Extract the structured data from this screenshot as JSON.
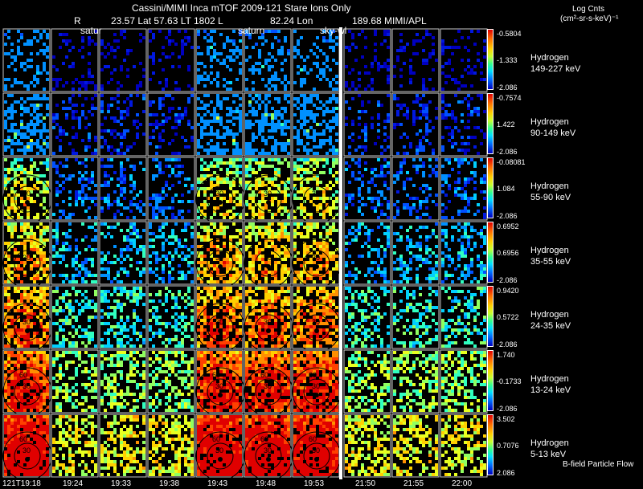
{
  "header": {
    "title": "Cassini/MIMI Inca mTOF  2009-121   Stare   Ions Only",
    "info_r": "R",
    "info_mid": "23.57 Lat 57.63 LT 1802 L",
    "info_lon": "82.24 Lon",
    "info_end": "189.68  MIMI/APL",
    "units_line1": "Log Cnts",
    "units_line2": "(cm²-sr-s-keV)⁻¹"
  },
  "panel_labels": {
    "saturn_a": "satur",
    "saturn_b": "saturn",
    "sky": "sky-wl"
  },
  "rows": [
    {
      "species": "Hydrogen",
      "energy": "149-227 keV",
      "cb_max": "-0.5804",
      "cb_mid": "-1.333",
      "cb_min": "-2.086",
      "fill": 0.25
    },
    {
      "species": "Hydrogen",
      "energy": "90-149 keV",
      "cb_max": "-0.7574",
      "cb_mid": "1.422",
      "cb_min": "-2.086",
      "fill": 0.35
    },
    {
      "species": "Hydrogen",
      "energy": "55-90 keV",
      "cb_max": "-0.08081",
      "cb_mid": "1.084",
      "cb_min": "-2.086",
      "fill": 0.4
    },
    {
      "species": "Hydrogen",
      "energy": "35-55 keV",
      "cb_max": "0.6952",
      "cb_mid": "0.6956",
      "cb_min": "-2.086",
      "fill": 0.45
    },
    {
      "species": "Hydrogen",
      "energy": "24-35 keV",
      "cb_max": "0.9420",
      "cb_mid": "0.5722",
      "cb_min": "-2.086",
      "fill": 0.5
    },
    {
      "species": "Hydrogen",
      "energy": "13-24 keV",
      "cb_max": "1.740",
      "cb_mid": "-0.1733",
      "cb_min": "-2.086",
      "fill": 0.6
    },
    {
      "species": "Hydrogen",
      "energy": "5-13 keV",
      "cb_max": "3.502",
      "cb_mid": "0.7076",
      "cb_min": "2.086",
      "fill": 0.65
    }
  ],
  "times": [
    "121T19:18",
    "19:24",
    "19:33",
    "19:38",
    "19:43",
    "19:48",
    "19:53",
    "21:50",
    "21:55",
    "22:00"
  ],
  "ring_labels": [
    "30",
    "60"
  ],
  "footer_note": "B-field Particle Flow"
}
